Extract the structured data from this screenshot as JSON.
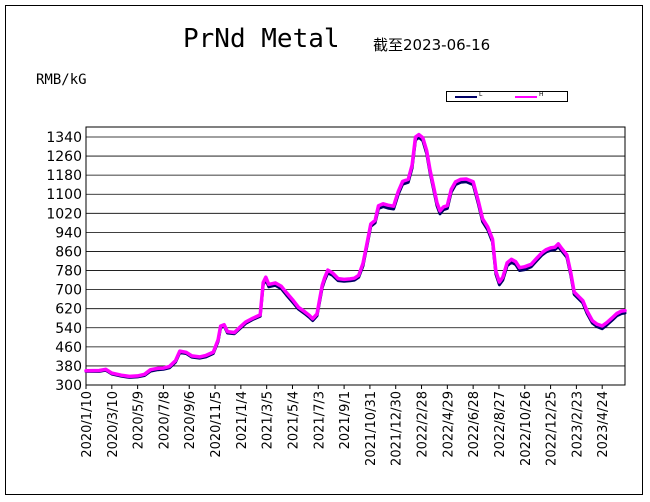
{
  "chart_data": {
    "type": "line",
    "title": "PrNd Metal",
    "subtitle": "截至2023-06-16",
    "ylabel": "RMB/kG",
    "ylim": [
      300,
      1340
    ],
    "yticks": [
      300,
      380,
      460,
      540,
      620,
      700,
      780,
      860,
      940,
      1020,
      1100,
      1180,
      1260,
      1340
    ],
    "grid": "horizontal",
    "legend_placement": "top-right",
    "xlim": [
      "2020-01-10",
      "2023-06-16"
    ],
    "xticks": [
      "2020/1/10",
      "2020/3/10",
      "2020/5/9",
      "2020/7/8",
      "2020/9/6",
      "2020/11/5",
      "2021/1/4",
      "2021/3/5",
      "2021/5/4",
      "2021/7/3",
      "2021/9/1",
      "2021/10/31",
      "2021/12/30",
      "2022/2/28",
      "2022/4/29",
      "2022/6/28",
      "2022/8/27",
      "2022/10/26",
      "2022/12/25",
      "2023/2/23",
      "2023/4/24"
    ],
    "series": [
      {
        "name": "L",
        "color": "#000066",
        "points": [
          [
            "2020-01-10",
            357
          ],
          [
            "2020-02-10",
            357
          ],
          [
            "2020-02-25",
            362
          ],
          [
            "2020-03-10",
            346
          ],
          [
            "2020-04-01",
            337
          ],
          [
            "2020-04-20",
            332
          ],
          [
            "2020-05-09",
            334
          ],
          [
            "2020-05-25",
            340
          ],
          [
            "2020-06-08",
            358
          ],
          [
            "2020-06-25",
            364
          ],
          [
            "2020-07-08",
            366
          ],
          [
            "2020-07-22",
            372
          ],
          [
            "2020-08-05",
            396
          ],
          [
            "2020-08-15",
            436
          ],
          [
            "2020-08-30",
            432
          ],
          [
            "2020-09-12",
            417
          ],
          [
            "2020-09-30",
            413
          ],
          [
            "2020-10-15",
            418
          ],
          [
            "2020-11-01",
            432
          ],
          [
            "2020-11-12",
            483
          ],
          [
            "2020-11-18",
            540
          ],
          [
            "2020-11-26",
            548
          ],
          [
            "2020-12-04",
            518
          ],
          [
            "2020-12-20",
            515
          ],
          [
            "2021-01-04",
            540
          ],
          [
            "2021-01-15",
            558
          ],
          [
            "2021-02-01",
            575
          ],
          [
            "2021-02-18",
            588
          ],
          [
            "2021-02-25",
            720
          ],
          [
            "2021-03-03",
            742
          ],
          [
            "2021-03-10",
            712
          ],
          [
            "2021-03-25",
            718
          ],
          [
            "2021-04-08",
            704
          ],
          [
            "2021-04-20",
            677
          ],
          [
            "2021-05-04",
            648
          ],
          [
            "2021-05-18",
            618
          ],
          [
            "2021-06-01",
            600
          ],
          [
            "2021-06-12",
            584
          ],
          [
            "2021-06-20",
            570
          ],
          [
            "2021-06-30",
            590
          ],
          [
            "2021-07-06",
            648
          ],
          [
            "2021-07-12",
            708
          ],
          [
            "2021-07-18",
            740
          ],
          [
            "2021-07-25",
            770
          ],
          [
            "2021-08-05",
            760
          ],
          [
            "2021-08-18",
            738
          ],
          [
            "2021-09-01",
            735
          ],
          [
            "2021-09-15",
            737
          ],
          [
            "2021-09-25",
            740
          ],
          [
            "2021-10-05",
            752
          ],
          [
            "2021-10-15",
            800
          ],
          [
            "2021-10-25",
            890
          ],
          [
            "2021-11-02",
            965
          ],
          [
            "2021-11-12",
            980
          ],
          [
            "2021-11-20",
            1040
          ],
          [
            "2021-12-01",
            1048
          ],
          [
            "2021-12-12",
            1042
          ],
          [
            "2021-12-25",
            1038
          ],
          [
            "2022-01-05",
            1100
          ],
          [
            "2022-01-15",
            1142
          ],
          [
            "2022-01-28",
            1150
          ],
          [
            "2022-02-06",
            1210
          ],
          [
            "2022-02-14",
            1328
          ],
          [
            "2022-02-22",
            1338
          ],
          [
            "2022-03-03",
            1325
          ],
          [
            "2022-03-12",
            1270
          ],
          [
            "2022-03-20",
            1188
          ],
          [
            "2022-03-28",
            1120
          ],
          [
            "2022-04-05",
            1052
          ],
          [
            "2022-04-12",
            1018
          ],
          [
            "2022-04-20",
            1035
          ],
          [
            "2022-04-29",
            1040
          ],
          [
            "2022-05-08",
            1108
          ],
          [
            "2022-05-18",
            1140
          ],
          [
            "2022-05-30",
            1150
          ],
          [
            "2022-06-12",
            1152
          ],
          [
            "2022-06-28",
            1140
          ],
          [
            "2022-07-10",
            1060
          ],
          [
            "2022-07-20",
            985
          ],
          [
            "2022-08-01",
            950
          ],
          [
            "2022-08-12",
            900
          ],
          [
            "2022-08-20",
            765
          ],
          [
            "2022-08-28",
            720
          ],
          [
            "2022-09-05",
            740
          ],
          [
            "2022-09-15",
            800
          ],
          [
            "2022-09-25",
            815
          ],
          [
            "2022-10-05",
            805
          ],
          [
            "2022-10-14",
            780
          ],
          [
            "2022-10-26",
            784
          ],
          [
            "2022-11-10",
            796
          ],
          [
            "2022-11-22",
            820
          ],
          [
            "2022-12-05",
            845
          ],
          [
            "2022-12-15",
            858
          ],
          [
            "2022-12-25",
            865
          ],
          [
            "2023-01-04",
            868
          ],
          [
            "2023-01-12",
            880
          ],
          [
            "2023-01-20",
            862
          ],
          [
            "2023-02-01",
            835
          ],
          [
            "2023-02-10",
            760
          ],
          [
            "2023-02-18",
            680
          ],
          [
            "2023-02-28",
            662
          ],
          [
            "2023-03-10",
            644
          ],
          [
            "2023-03-20",
            600
          ],
          [
            "2023-04-01",
            560
          ],
          [
            "2023-04-12",
            545
          ],
          [
            "2023-04-24",
            536
          ],
          [
            "2023-05-05",
            552
          ],
          [
            "2023-05-18",
            573
          ],
          [
            "2023-05-28",
            590
          ],
          [
            "2023-06-08",
            600
          ],
          [
            "2023-06-16",
            602
          ]
        ]
      },
      {
        "name": "H",
        "color": "#ff00ff",
        "points": [
          [
            "2020-01-10",
            360
          ],
          [
            "2020-02-10",
            361
          ],
          [
            "2020-02-25",
            366
          ],
          [
            "2020-03-10",
            350
          ],
          [
            "2020-04-01",
            341
          ],
          [
            "2020-04-20",
            336
          ],
          [
            "2020-05-09",
            338
          ],
          [
            "2020-05-25",
            345
          ],
          [
            "2020-06-08",
            364
          ],
          [
            "2020-06-25",
            370
          ],
          [
            "2020-07-08",
            371
          ],
          [
            "2020-07-22",
            378
          ],
          [
            "2020-08-05",
            402
          ],
          [
            "2020-08-15",
            442
          ],
          [
            "2020-08-30",
            437
          ],
          [
            "2020-09-12",
            422
          ],
          [
            "2020-09-30",
            418
          ],
          [
            "2020-10-15",
            424
          ],
          [
            "2020-11-01",
            438
          ],
          [
            "2020-11-12",
            490
          ],
          [
            "2020-11-18",
            547
          ],
          [
            "2020-11-26",
            553
          ],
          [
            "2020-12-04",
            524
          ],
          [
            "2020-12-20",
            520
          ],
          [
            "2021-01-04",
            546
          ],
          [
            "2021-01-15",
            564
          ],
          [
            "2021-02-01",
            580
          ],
          [
            "2021-02-18",
            594
          ],
          [
            "2021-02-25",
            730
          ],
          [
            "2021-03-03",
            752
          ],
          [
            "2021-03-10",
            722
          ],
          [
            "2021-03-25",
            728
          ],
          [
            "2021-04-08",
            714
          ],
          [
            "2021-04-20",
            687
          ],
          [
            "2021-05-04",
            658
          ],
          [
            "2021-05-18",
            626
          ],
          [
            "2021-06-01",
            608
          ],
          [
            "2021-06-12",
            592
          ],
          [
            "2021-06-20",
            578
          ],
          [
            "2021-06-30",
            598
          ],
          [
            "2021-07-06",
            658
          ],
          [
            "2021-07-12",
            718
          ],
          [
            "2021-07-18",
            750
          ],
          [
            "2021-07-25",
            782
          ],
          [
            "2021-08-05",
            770
          ],
          [
            "2021-08-18",
            746
          ],
          [
            "2021-09-01",
            743
          ],
          [
            "2021-09-15",
            745
          ],
          [
            "2021-09-25",
            748
          ],
          [
            "2021-10-05",
            760
          ],
          [
            "2021-10-15",
            810
          ],
          [
            "2021-10-25",
            900
          ],
          [
            "2021-11-02",
            975
          ],
          [
            "2021-11-12",
            990
          ],
          [
            "2021-11-20",
            1052
          ],
          [
            "2021-12-01",
            1060
          ],
          [
            "2021-12-12",
            1054
          ],
          [
            "2021-12-25",
            1050
          ],
          [
            "2022-01-05",
            1112
          ],
          [
            "2022-01-15",
            1154
          ],
          [
            "2022-01-28",
            1162
          ],
          [
            "2022-02-06",
            1222
          ],
          [
            "2022-02-14",
            1340
          ],
          [
            "2022-02-22",
            1350
          ],
          [
            "2022-03-03",
            1337
          ],
          [
            "2022-03-12",
            1282
          ],
          [
            "2022-03-20",
            1200
          ],
          [
            "2022-03-28",
            1132
          ],
          [
            "2022-04-05",
            1064
          ],
          [
            "2022-04-12",
            1030
          ],
          [
            "2022-04-20",
            1047
          ],
          [
            "2022-04-29",
            1052
          ],
          [
            "2022-05-08",
            1120
          ],
          [
            "2022-05-18",
            1152
          ],
          [
            "2022-05-30",
            1162
          ],
          [
            "2022-06-12",
            1164
          ],
          [
            "2022-06-28",
            1152
          ],
          [
            "2022-07-10",
            1072
          ],
          [
            "2022-07-20",
            997
          ],
          [
            "2022-08-01",
            962
          ],
          [
            "2022-08-12",
            912
          ],
          [
            "2022-08-20",
            777
          ],
          [
            "2022-08-28",
            732
          ],
          [
            "2022-09-05",
            752
          ],
          [
            "2022-09-15",
            812
          ],
          [
            "2022-09-25",
            827
          ],
          [
            "2022-10-05",
            817
          ],
          [
            "2022-10-14",
            792
          ],
          [
            "2022-10-26",
            796
          ],
          [
            "2022-11-10",
            806
          ],
          [
            "2022-11-22",
            830
          ],
          [
            "2022-12-05",
            855
          ],
          [
            "2022-12-15",
            868
          ],
          [
            "2022-12-25",
            875
          ],
          [
            "2023-01-04",
            878
          ],
          [
            "2023-01-12",
            892
          ],
          [
            "2023-01-20",
            872
          ],
          [
            "2023-02-01",
            845
          ],
          [
            "2023-02-10",
            770
          ],
          [
            "2023-02-18",
            690
          ],
          [
            "2023-02-28",
            672
          ],
          [
            "2023-03-10",
            654
          ],
          [
            "2023-03-20",
            610
          ],
          [
            "2023-04-01",
            570
          ],
          [
            "2023-04-12",
            555
          ],
          [
            "2023-04-24",
            548
          ],
          [
            "2023-05-05",
            562
          ],
          [
            "2023-05-18",
            583
          ],
          [
            "2023-05-28",
            600
          ],
          [
            "2023-06-08",
            610
          ],
          [
            "2023-06-16",
            612
          ]
        ]
      }
    ]
  }
}
